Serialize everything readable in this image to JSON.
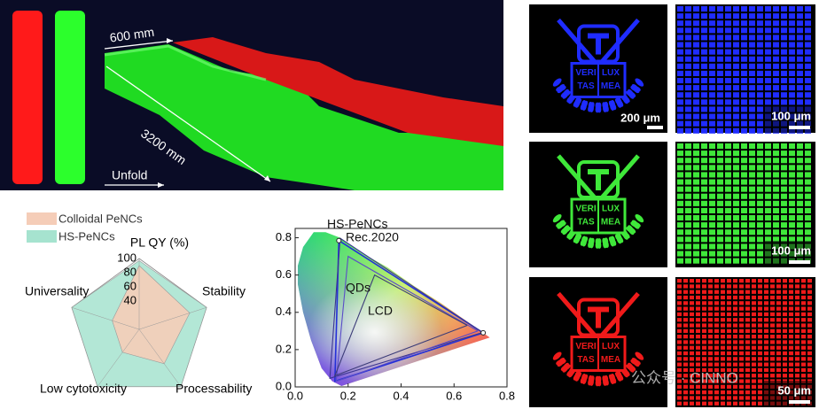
{
  "photo": {
    "labels": [
      "600 mm",
      "3200 mm",
      "Unfold"
    ]
  },
  "micrographs": [
    {
      "color": "#1f2cff",
      "emblem_text": [
        "VERI",
        "LUX",
        "TAS",
        "MEA"
      ],
      "emblem_scale": "200 μm",
      "grid_scale": "100 μm"
    },
    {
      "color": "#3fe83a",
      "emblem_text": [
        "VERI",
        "LUX",
        "TAS",
        "MEA"
      ],
      "grid_scale": "100 μm"
    },
    {
      "color": "#f01a1a",
      "emblem_text": [
        "VERI",
        "LUX",
        "TAS",
        "MEA"
      ],
      "grid_scale": "50 μm"
    }
  ],
  "watermark": "公众号 · CINNO",
  "chart_data": [
    {
      "type": "radar",
      "categories": [
        "PL QY (%)",
        "Stability",
        "Processability",
        "Low cytotoxicity",
        "Universality"
      ],
      "series": [
        {
          "name": "Colloidal PeNCs",
          "color": "#f5cdb8",
          "values": [
            90,
            75,
            60,
            40,
            40
          ]
        },
        {
          "name": "HS-PeNCs",
          "color": "#a6e3cf",
          "values": [
            97,
            100,
            100,
            100,
            100
          ]
        }
      ],
      "rlim": [
        0,
        100
      ],
      "rticks": [
        40,
        60,
        80,
        100
      ]
    },
    {
      "type": "line",
      "xlim": [
        0,
        0.8
      ],
      "ylim": [
        0,
        0.85
      ],
      "xticks": [
        {
          "value": 0,
          "label": "0.0"
        },
        {
          "value": 0.2,
          "label": "0.2"
        },
        {
          "value": 0.4,
          "label": "0.4"
        },
        {
          "value": 0.6,
          "label": "0.6"
        },
        {
          "value": 0.8,
          "label": "0.8"
        }
      ],
      "yticks": [
        {
          "value": 0,
          "label": "0.0"
        },
        {
          "value": 0.2,
          "label": "0.2"
        },
        {
          "value": 0.4,
          "label": "0.4"
        },
        {
          "value": 0.6,
          "label": "0.6"
        },
        {
          "value": 0.8,
          "label": "0.8"
        }
      ],
      "series": [
        {
          "name": "HS-PeNCs",
          "color": "#2430d8",
          "x": [
            0.71,
            0.165,
            0.15,
            0.71
          ],
          "y": [
            0.29,
            0.785,
            0.03,
            0.29
          ]
        },
        {
          "name": "Rec.2020",
          "color": "#3a3590",
          "x": [
            0.708,
            0.17,
            0.131,
            0.708
          ],
          "y": [
            0.292,
            0.797,
            0.046,
            0.292
          ]
        },
        {
          "name": "QDs",
          "color": "#5a4cc8",
          "x": [
            0.69,
            0.2,
            0.155,
            0.69
          ],
          "y": [
            0.3,
            0.7,
            0.03,
            0.3
          ]
        },
        {
          "name": "LCD",
          "color": "#3c3c78",
          "x": [
            0.65,
            0.3,
            0.15,
            0.65
          ],
          "y": [
            0.33,
            0.6,
            0.06,
            0.33
          ]
        }
      ]
    }
  ]
}
